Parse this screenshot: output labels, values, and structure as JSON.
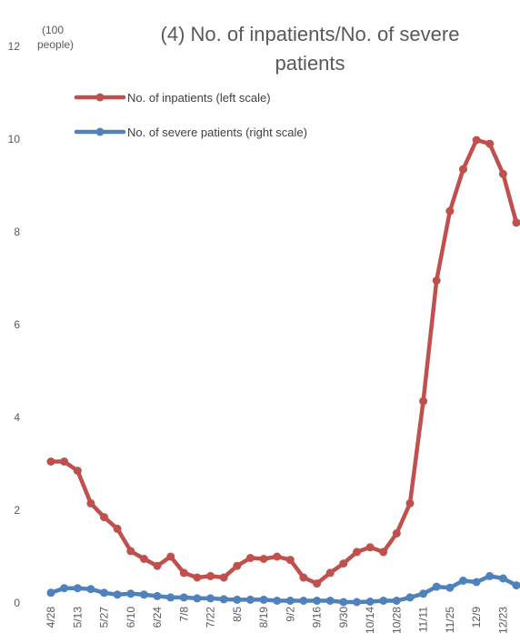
{
  "chart_data": {
    "type": "line",
    "title_lines": [
      "(4) No. of inpatients/No. of severe",
      "patients"
    ],
    "y_unit_lines": [
      "(100",
      "people)"
    ],
    "y_ticks": [
      "0",
      "2",
      "4",
      "6",
      "8",
      "10",
      "12"
    ],
    "ylim": [
      0,
      12
    ],
    "x_tick_labels": [
      "4/28",
      "5/13",
      "5/27",
      "6/10",
      "6/24",
      "7/8",
      "7/22",
      "8/5",
      "8/19",
      "9/2",
      "9/16",
      "9/30",
      "10/14",
      "10/28",
      "11/11",
      "11/25",
      "12/9",
      "12/23"
    ],
    "series": [
      {
        "name": "No. of inpatients (left scale)",
        "color": "#C0504D",
        "values": [
          3.05,
          3.05,
          2.85,
          2.15,
          1.85,
          1.6,
          1.12,
          0.95,
          0.8,
          1.0,
          0.65,
          0.55,
          0.58,
          0.55,
          0.8,
          0.97,
          0.95,
          1.0,
          0.93,
          0.55,
          0.42,
          0.65,
          0.85,
          1.1,
          1.2,
          1.1,
          1.5,
          2.15,
          4.35,
          6.95,
          8.45,
          9.35,
          9.98,
          9.9,
          9.25,
          8.2
        ]
      },
      {
        "name": "No. of severe patients (right scale)",
        "color": "#4F81BD",
        "values": [
          0.22,
          0.32,
          0.32,
          0.3,
          0.22,
          0.18,
          0.2,
          0.18,
          0.15,
          0.12,
          0.12,
          0.1,
          0.1,
          0.08,
          0.07,
          0.07,
          0.07,
          0.05,
          0.05,
          0.05,
          0.05,
          0.05,
          0.02,
          0.02,
          0.03,
          0.05,
          0.05,
          0.12,
          0.2,
          0.35,
          0.33,
          0.48,
          0.45,
          0.58,
          0.53,
          0.38
        ]
      }
    ],
    "legend_position": "top-left",
    "grid": false
  }
}
